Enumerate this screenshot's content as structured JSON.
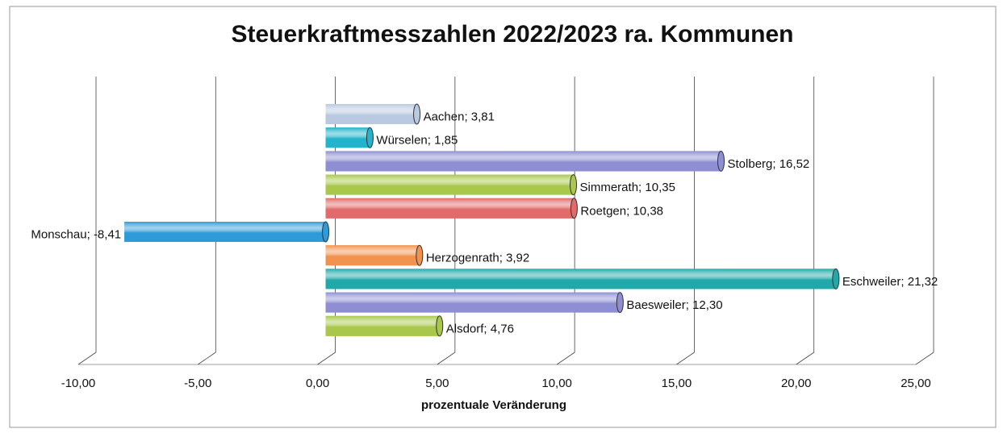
{
  "chart_data": {
    "type": "bar",
    "orientation": "horizontal",
    "title": "Steuerkraftmesszahlen 2022/2023 ra. Kommunen",
    "x_label": "prozentuale Veränderung",
    "categories": [
      "Aachen",
      "Würselen",
      "Stolberg",
      "Simmerath",
      "Roetgen",
      "Monschau",
      "Herzogenrath",
      "Eschweiler",
      "Baesweiler",
      "Alsdorf"
    ],
    "values": [
      3.81,
      1.85,
      16.52,
      10.35,
      10.38,
      -8.41,
      3.92,
      21.32,
      12.3,
      4.76
    ],
    "value_labels": [
      "3,81",
      "1,85",
      "16,52",
      "10,35",
      "10,38",
      "-8,41",
      "3,92",
      "21,32",
      "12,30",
      "4,76"
    ],
    "label_separator": "; ",
    "colors": [
      "#b9c9e2",
      "#22b4cc",
      "#8d8fd2",
      "#a9c84b",
      "#e26a6a",
      "#2f9ad8",
      "#f2924f",
      "#21a9a9",
      "#8d8fd2",
      "#a9c84b"
    ],
    "xlim": [
      -10,
      25
    ],
    "xticks": [
      {
        "value": -10,
        "label": "-10,00"
      },
      {
        "value": -5,
        "label": "-5,00"
      },
      {
        "value": 0,
        "label": "0,00"
      },
      {
        "value": 5,
        "label": "5,00"
      },
      {
        "value": 10,
        "label": "10,00"
      },
      {
        "value": 15,
        "label": "15,00"
      },
      {
        "value": 20,
        "label": "20,00"
      },
      {
        "value": 25,
        "label": "25,00"
      }
    ],
    "grid": true
  }
}
